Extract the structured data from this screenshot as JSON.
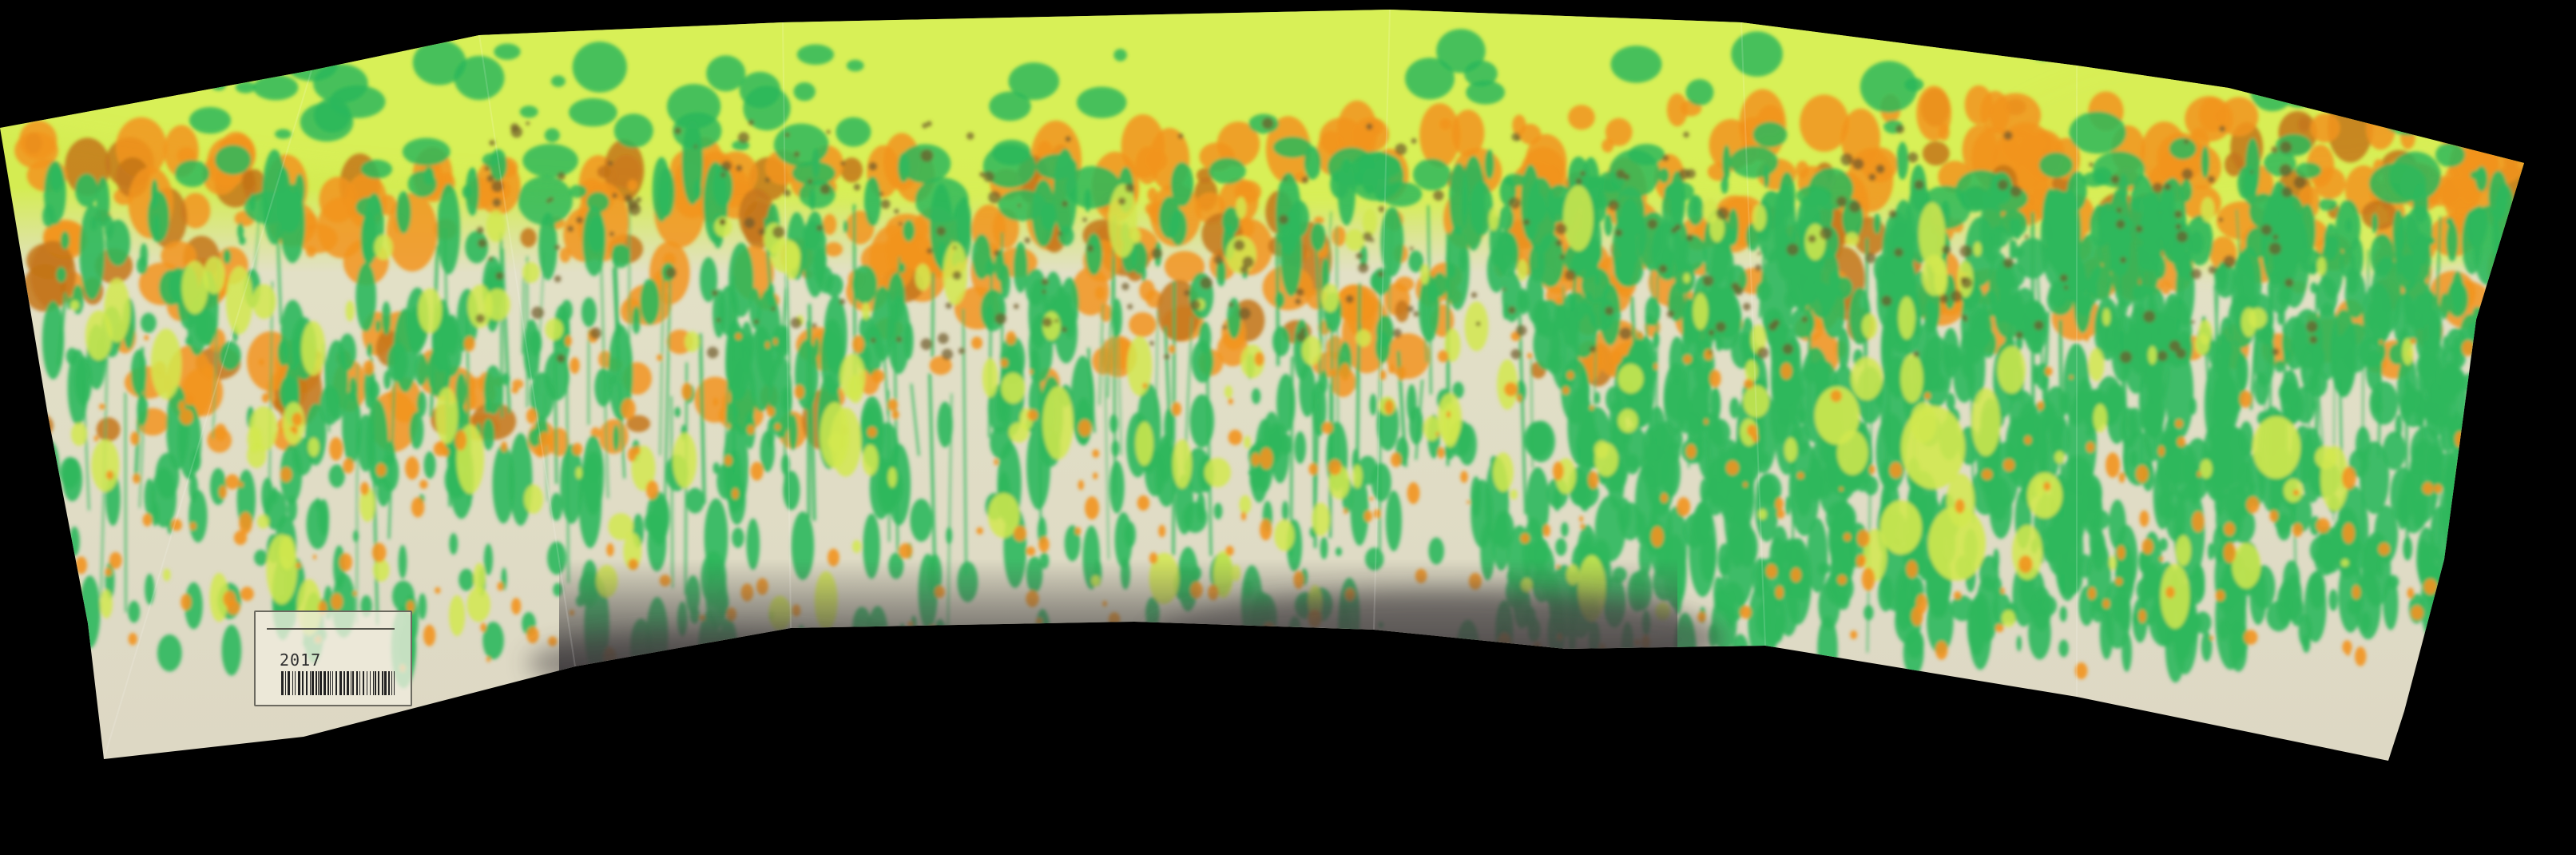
{
  "scene": {
    "description_type": "stitched panoramic photograph",
    "background_color": "#000000",
    "paint_colors": {
      "upper_wash": "#d8ef57",
      "green": "#2db85c",
      "orange": "#f2941f",
      "dark_orange": "#c4761a",
      "lime": "#d2e84f",
      "canvas": "#dcd6c4",
      "grey_shadow": "#4e4b4c"
    }
  },
  "label": {
    "code": "2017",
    "has_barcode": true
  }
}
